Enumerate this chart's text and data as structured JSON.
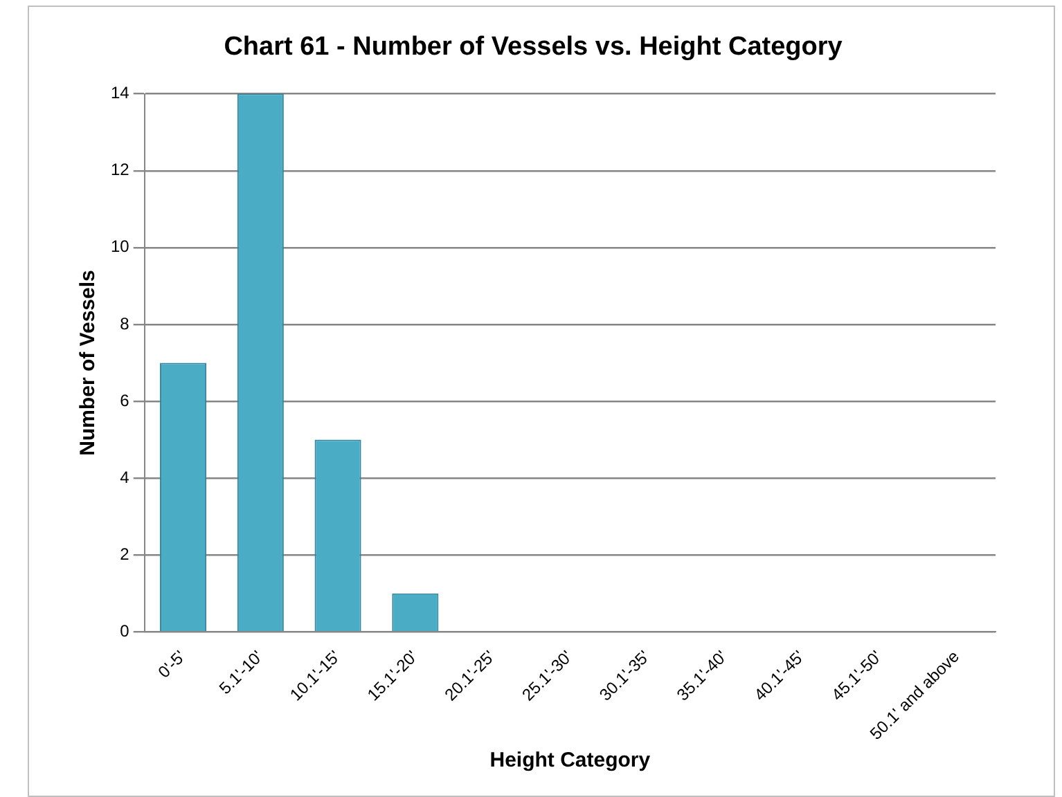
{
  "chart_data": {
    "type": "bar",
    "title": "Chart 61 - Number of Vessels vs. Height Category",
    "xlabel": "Height Category",
    "ylabel": "Number of Vessels",
    "categories": [
      "0'-5'",
      "5.1'-10'",
      "10.1'-15'",
      "15.1'-20'",
      "20.1'-25'",
      "25.1'-30'",
      "30.1'-35'",
      "35.1'-40'",
      "40.1'-45'",
      "45.1'-50'",
      "50.1' and above"
    ],
    "values": [
      7,
      14,
      5,
      1,
      0,
      0,
      0,
      0,
      0,
      0,
      0
    ],
    "color": "#4bacc6",
    "ylim": [
      0,
      14
    ],
    "yticks": [
      0,
      2,
      4,
      6,
      8,
      10,
      12,
      14
    ],
    "grid": "y",
    "legend": false
  }
}
